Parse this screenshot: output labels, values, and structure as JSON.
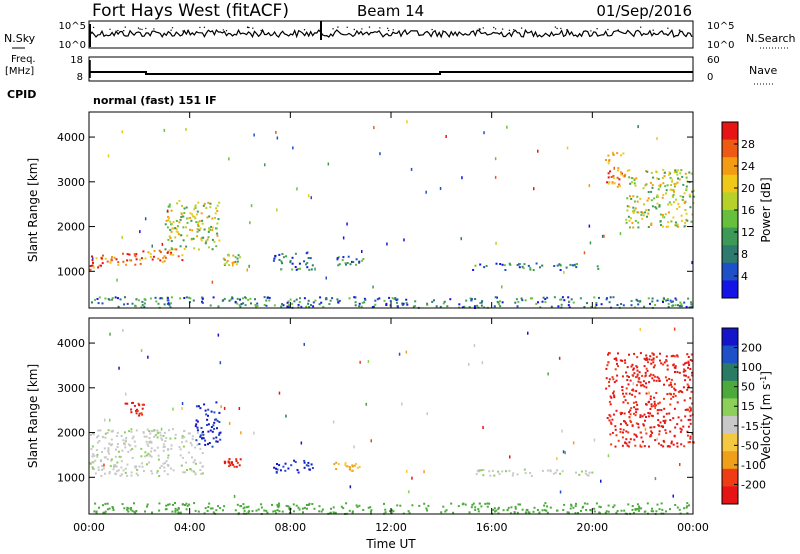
{
  "header": {
    "station": "Fort Hays West (fitACF)",
    "beam": "Beam 14",
    "date": "01/Sep/2016"
  },
  "noise_panel": {
    "left_label": "N.Sky",
    "right_label": "N.Search",
    "left_ticks": [
      "10^5",
      "10^0"
    ],
    "right_ticks": [
      "10^5",
      "10^0"
    ]
  },
  "freq_panel": {
    "left_label": "Freq.",
    "left_unit": "[MHz]",
    "right_label": "Nave",
    "left_ticks": [
      "18",
      "8"
    ],
    "right_ticks": [
      "60",
      "0"
    ]
  },
  "cpid": {
    "label": "CPID",
    "value": "normal (fast) 151 IF"
  },
  "chart_data": [
    {
      "type": "heatmap",
      "name": "power",
      "xlabel": "Time UT",
      "ylabel": "Slant Range [km]",
      "xlim": [
        0,
        24
      ],
      "ylim": [
        180,
        4560
      ],
      "yticks": [
        1000,
        2000,
        3000,
        4000
      ],
      "colorbar": {
        "label": "Power [dB]",
        "ticks": [
          "28",
          "24",
          "20",
          "16",
          "12",
          "8",
          "4"
        ],
        "range": [
          0,
          30
        ],
        "colors": [
          "#1414e6",
          "#1e50c8",
          "#2f7a6e",
          "#3c9a56",
          "#67c03c",
          "#b6d22a",
          "#f0c818",
          "#f39c12",
          "#ee5a14",
          "#e61414"
        ]
      },
      "regions": [
        {
          "t": [
            0.0,
            3.8
          ],
          "r": [
            1050,
            1400
          ],
          "level": "high"
        },
        {
          "t": [
            3.0,
            5.2
          ],
          "r": [
            1500,
            2600
          ],
          "level": "mid"
        },
        {
          "t": [
            5.3,
            6.0
          ],
          "r": [
            1150,
            1400
          ],
          "level": "mid"
        },
        {
          "t": [
            7.3,
            8.9
          ],
          "r": [
            1050,
            1450
          ],
          "level": "low"
        },
        {
          "t": [
            9.7,
            10.9
          ],
          "r": [
            1150,
            1350
          ],
          "level": "low"
        },
        {
          "t": [
            15.2,
            20.2
          ],
          "r": [
            1050,
            1200
          ],
          "level": "low"
        },
        {
          "t": [
            20.5,
            21.3
          ],
          "r": [
            2900,
            3700
          ],
          "level": "high"
        },
        {
          "t": [
            21.3,
            24.0
          ],
          "r": [
            2000,
            3300
          ],
          "level": "mid"
        },
        {
          "t": [
            0.0,
            24.0
          ],
          "r": [
            200,
            450
          ],
          "level": "low"
        }
      ]
    },
    {
      "type": "heatmap",
      "name": "velocity",
      "xlabel": "Time UT",
      "ylabel": "Slant Range [km]",
      "xlim": [
        0,
        24
      ],
      "ylim": [
        180,
        4560
      ],
      "xticks": [
        "00:00",
        "04:00",
        "08:00",
        "12:00",
        "16:00",
        "20:00",
        "00:00"
      ],
      "yticks": [
        1000,
        2000,
        3000,
        4000
      ],
      "colorbar": {
        "label": "Velocity [m s^-1]",
        "ticks": [
          "200",
          "100",
          "50",
          "15",
          "-15",
          "-50",
          "-100",
          "-200"
        ],
        "range": [
          -250,
          250
        ],
        "colors": [
          "#e61414",
          "#ef3c14",
          "#f0a018",
          "#f5c842",
          "#c8c8c8",
          "#8cd05a",
          "#4caa3c",
          "#2a7a64",
          "#1e50c8",
          "#1414c8"
        ]
      },
      "regions": [
        {
          "t": [
            0.0,
            4.5
          ],
          "r": [
            1050,
            2100
          ],
          "value": "grey"
        },
        {
          "t": [
            1.3,
            2.2
          ],
          "r": [
            2400,
            2700
          ],
          "value": "red"
        },
        {
          "t": [
            4.2,
            5.2
          ],
          "r": [
            1700,
            2700
          ],
          "value": "blue"
        },
        {
          "t": [
            5.3,
            6.0
          ],
          "r": [
            1250,
            1450
          ],
          "value": "red"
        },
        {
          "t": [
            7.3,
            8.9
          ],
          "r": [
            1100,
            1400
          ],
          "value": "blue"
        },
        {
          "t": [
            9.7,
            10.9
          ],
          "r": [
            1150,
            1350
          ],
          "value": "orange"
        },
        {
          "t": [
            15.2,
            20.2
          ],
          "r": [
            1050,
            1200
          ],
          "value": "grey"
        },
        {
          "t": [
            20.5,
            24.0
          ],
          "r": [
            1700,
            3800
          ],
          "value": "red"
        },
        {
          "t": [
            0.0,
            24.0
          ],
          "r": [
            200,
            450
          ],
          "value": "green"
        }
      ]
    }
  ]
}
